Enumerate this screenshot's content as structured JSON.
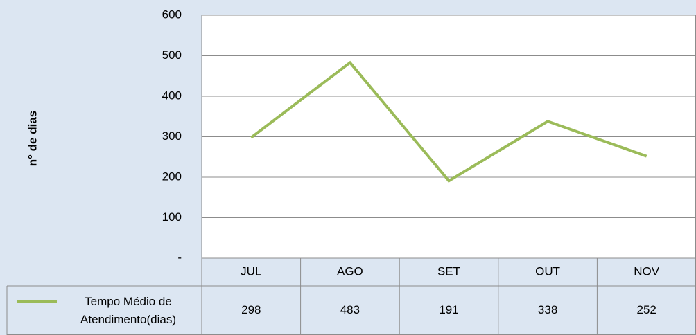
{
  "chart_data": {
    "type": "line",
    "y_label": "n° de dias",
    "categories": [
      "JUL",
      "AGO",
      "SET",
      "OUT",
      "NOV"
    ],
    "series": [
      {
        "name": "Tempo Médio de Atendimento(dias)",
        "color": "#9bbb59",
        "values": [
          298,
          483,
          191,
          338,
          252
        ]
      }
    ],
    "ylim": [
      0,
      600
    ],
    "yticks": [
      {
        "value": 0,
        "label": "-"
      },
      100,
      200,
      300,
      400,
      500,
      600
    ],
    "grid": true,
    "legend": "bottom",
    "data_table": true
  }
}
